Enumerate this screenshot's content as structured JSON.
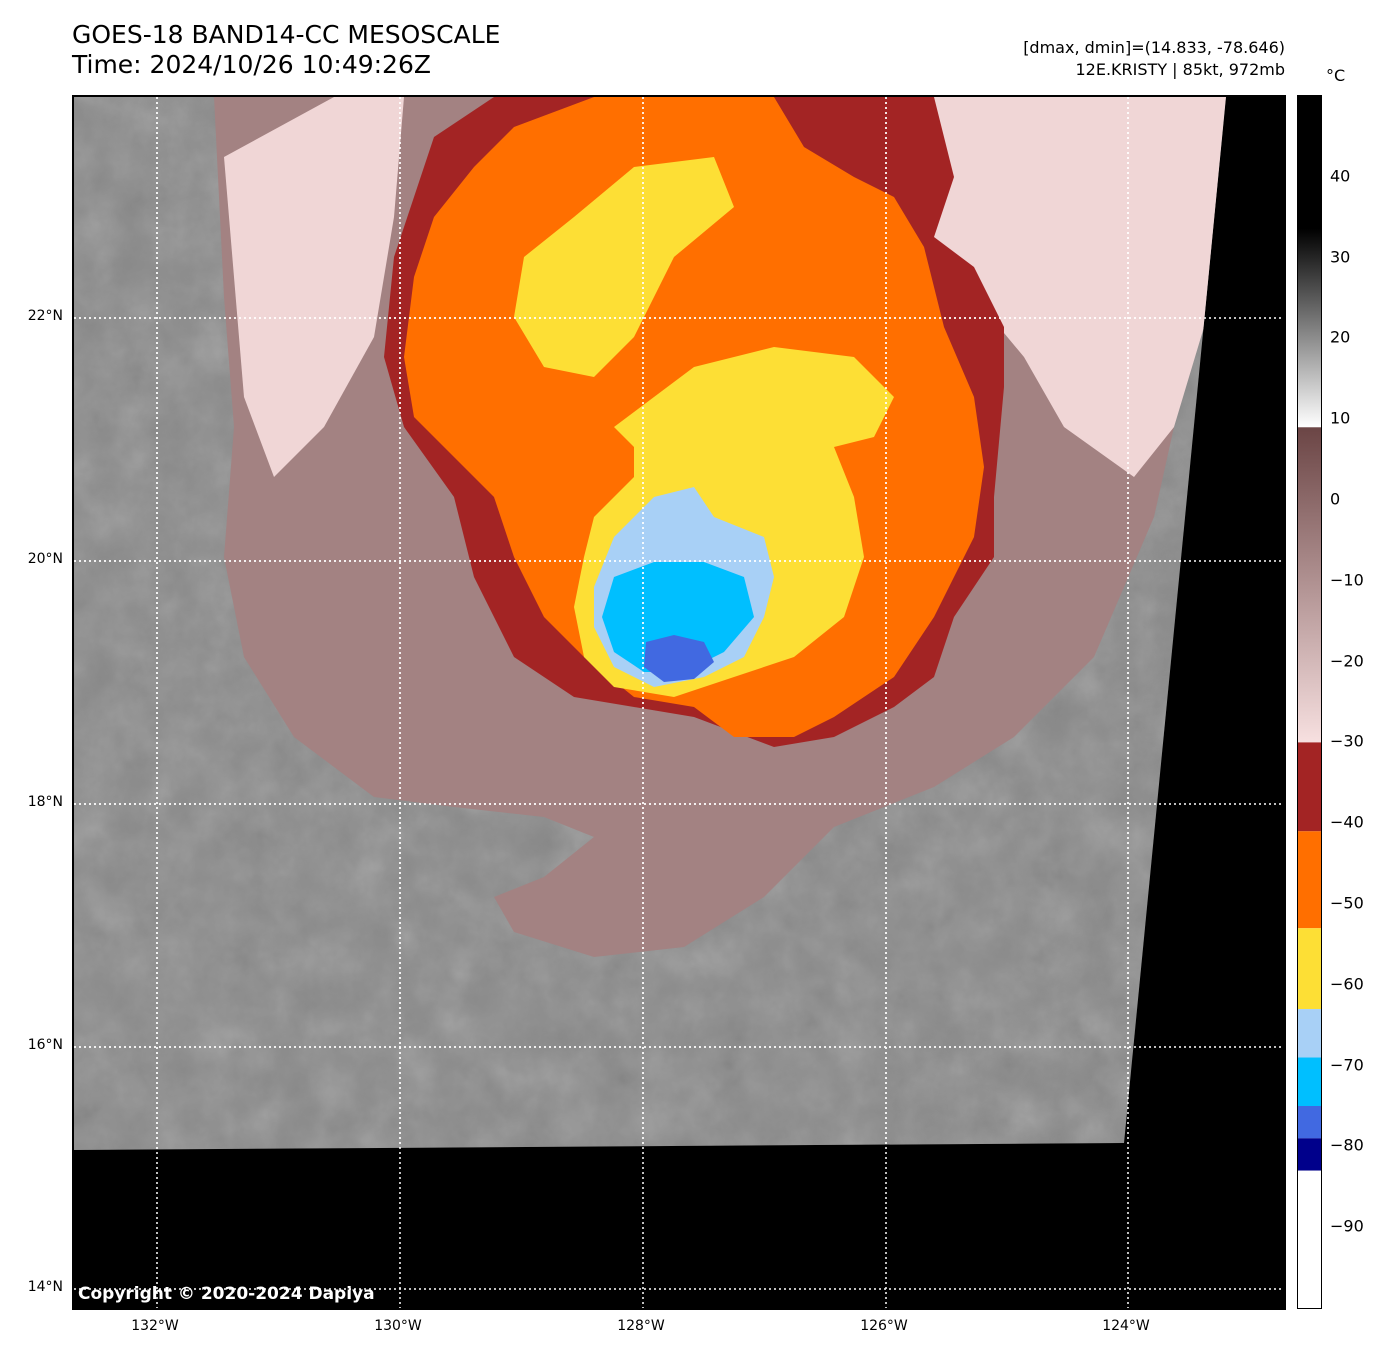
{
  "header": {
    "title_line1": "GOES-18 BAND14-CC MESOSCALE",
    "title_line2": "Time: 2024/10/26 10:49:26Z",
    "info_line1": "[dmax, dmin]=(14.833, -78.646)",
    "info_line2": "12E.KRISTY | 85kt, 972mb"
  },
  "map": {
    "lat_labels": [
      "22°N",
      "20°N",
      "18°N",
      "16°N",
      "14°N"
    ],
    "lon_labels": [
      "132°W",
      "130°W",
      "128°W",
      "126°W",
      "124°W"
    ],
    "copyright": "Copyright © 2020-2024 Dapiya",
    "colors": {
      "no_data": "#000000",
      "clear_gray": "#8a8a8a",
      "warm_brown": "#a38282",
      "pale_pink": "#f0d6d6",
      "dark_red": "#a32424",
      "orange": "#ff6f00",
      "yellow": "#fddf35",
      "light_blue": "#a8d0f6",
      "cyan": "#00bfff",
      "royal_blue": "#4169e1"
    }
  },
  "colorbar": {
    "unit": "°C",
    "ticks": [
      "40",
      "30",
      "20",
      "10",
      "0",
      "−10",
      "−20",
      "−30",
      "−40",
      "−50",
      "−60",
      "−70",
      "−80",
      "−90"
    ],
    "tick_values": [
      40,
      30,
      20,
      10,
      0,
      -10,
      -20,
      -30,
      -40,
      -50,
      -60,
      -70,
      -80,
      -90
    ],
    "range": [
      -100,
      50
    ]
  }
}
